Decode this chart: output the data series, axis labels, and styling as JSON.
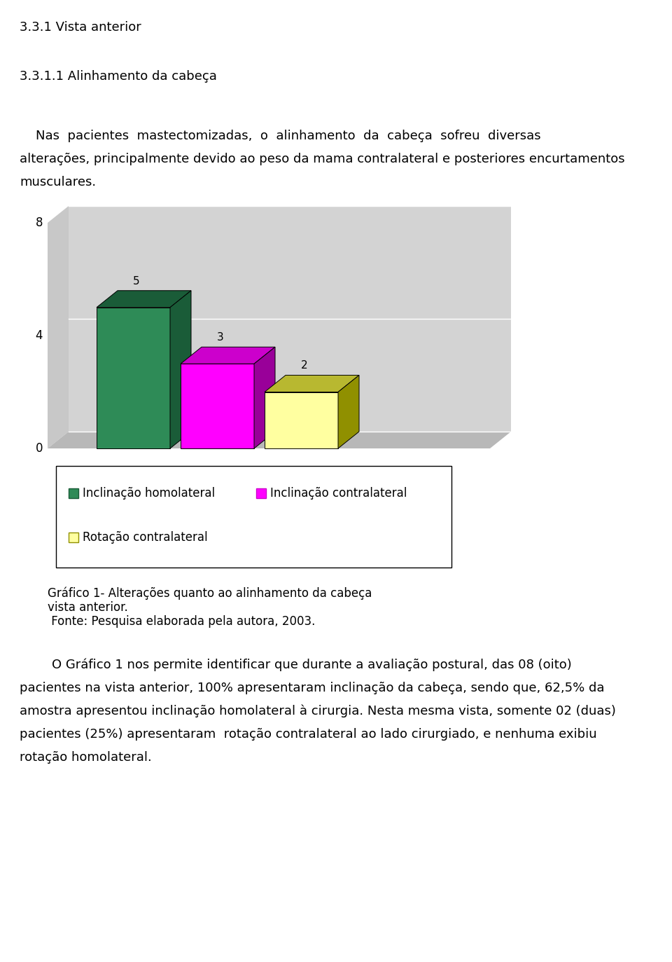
{
  "heading1": "3.3.1 Vista anterior",
  "heading2": "3.3.1.1 Alinhamento da cabeça",
  "para1_line1": "    Nas  pacientes  mastectomizadas,  o  alinhamento  da  cabeça  sofreu  diversas",
  "para1_line2": "alterações, principalmente devido ao peso da mama contralateral e posteriores encurtamentos",
  "para1_line3": "musculares.",
  "bar_values": [
    5,
    3,
    2
  ],
  "bar_labels": [
    "Inclinação homolateral",
    "Inclinação contralateral",
    "Rotação contralateral"
  ],
  "bar_colors_front": [
    "#2e8b57",
    "#ff00ff",
    "#ffffa0"
  ],
  "bar_colors_top": [
    "#1a5c38",
    "#cc00cc",
    "#b8b830"
  ],
  "bar_colors_side": [
    "#1a5c38",
    "#990099",
    "#909000"
  ],
  "legend_colors": [
    "#2e8b57",
    "#ff00ff",
    "#ffffa0"
  ],
  "legend_border_colors": [
    "#1a5c38",
    "#cc00cc",
    "#909000"
  ],
  "yticks": [
    0,
    4,
    8
  ],
  "ymax": 8,
  "bg_wall": "#d3d3d3",
  "bg_floor": "#b8b8b8",
  "bg_left_wall": "#c8c8c8",
  "caption_line1": "Gráfico 1- Alterações quanto ao alinhamento da cabeça",
  "caption_line2": "vista anterior.",
  "caption_line3": " Fonte: Pesquisa elaborada pela autora, 2003.",
  "para2_line1": "        O Gráfico 1 nos permite identificar que durante a avaliação postural, das 08 (oito)",
  "para2_line2": "pacientes na vista anterior, 100% apresentaram inclinação da cabeça, sendo que, 62,5% da",
  "para2_line3": "amostra apresentou inclinação homolateral à cirurgia. Nesta mesma vista, somente 02 (duas)",
  "para2_line4": "pacientes (25%) apresentaram  rotação contralateral ao lado cirurgiado, e nenhuma exibiu",
  "para2_line5": "rotação homolateral.",
  "font_size_heading": 13,
  "font_size_body": 13,
  "font_size_caption": 12,
  "font_size_axis": 12,
  "fig_width": 9.6,
  "fig_height": 13.73,
  "dpi": 100
}
